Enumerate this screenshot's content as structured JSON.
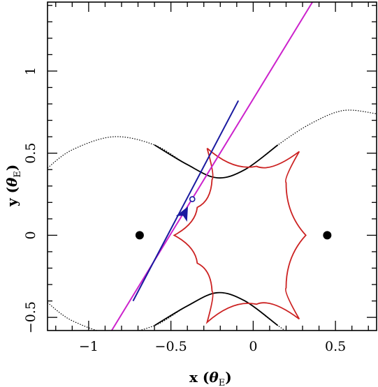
{
  "chart_data": {
    "type": "line",
    "title": "",
    "xlabel": "x (θ_E)",
    "ylabel": "y (θ_E)",
    "xlabel_main": "x",
    "ylabel_main": "y",
    "label_theta": "θ",
    "label_sub": "E",
    "xlim": [
      -1.25,
      0.75
    ],
    "ylim": [
      -0.58,
      1.42
    ],
    "x_ticks": [
      -1,
      -0.5,
      0,
      0.5
    ],
    "x_tick_labels": [
      "−1",
      "−0.5",
      "0",
      "0.5"
    ],
    "y_ticks": [
      -0.5,
      0,
      0.5,
      1
    ],
    "y_tick_labels": [
      "−0.5",
      "0",
      "0.5",
      "1"
    ],
    "grid": false,
    "lenses": [
      {
        "x": -0.69,
        "y": 0.0
      },
      {
        "x": 0.45,
        "y": 0.0
      }
    ],
    "trajectory": {
      "color_solid": "#1a1aa0",
      "color_ends": "#cc22cc",
      "solid_from": [
        -0.73,
        -0.4
      ],
      "solid_to": [
        -0.09,
        0.82
      ],
      "full_from": [
        -0.86,
        -0.58
      ],
      "full_to": [
        0.36,
        1.42
      ]
    },
    "source_position": {
      "x": -0.37,
      "y": 0.22
    },
    "arrow": {
      "x": -0.42,
      "y": 0.13,
      "color": "#1a1aa0"
    },
    "caustic": {
      "color": "#cc2222",
      "cusps": [
        [
          -0.28,
          0.53
        ],
        [
          0.28,
          0.51
        ],
        [
          0.32,
          0.0
        ],
        [
          0.28,
          -0.51
        ],
        [
          -0.28,
          -0.53
        ],
        [
          -0.48,
          0.0
        ]
      ],
      "fold_points": [
        [
          -0.25,
          0.34
        ],
        [
          0.02,
          0.42
        ],
        [
          0.2,
          0.32
        ],
        [
          0.2,
          -0.32
        ],
        [
          0.02,
          -0.42
        ],
        [
          -0.25,
          -0.34
        ],
        [
          -0.34,
          -0.17
        ],
        [
          -0.34,
          0.17
        ]
      ]
    },
    "critical_curve": {
      "color": "#000000",
      "upper": [
        [
          -1.25,
          0.41
        ],
        [
          -1.1,
          0.52
        ],
        [
          -0.85,
          0.6
        ],
        [
          -0.6,
          0.55
        ],
        [
          -0.4,
          0.43
        ],
        [
          -0.22,
          0.35
        ],
        [
          -0.05,
          0.4
        ],
        [
          0.15,
          0.55
        ],
        [
          0.35,
          0.68
        ],
        [
          0.55,
          0.76
        ],
        [
          0.75,
          0.74
        ]
      ],
      "lower": [
        [
          -1.25,
          -0.41
        ],
        [
          -1.1,
          -0.52
        ],
        [
          -0.85,
          -0.6
        ],
        [
          -0.6,
          -0.55
        ],
        [
          -0.4,
          -0.43
        ],
        [
          -0.22,
          -0.35
        ],
        [
          -0.05,
          -0.4
        ],
        [
          0.15,
          -0.55
        ],
        [
          0.35,
          -0.68
        ],
        [
          0.55,
          -0.76
        ],
        [
          0.75,
          -0.74
        ]
      ],
      "solid_range": [
        -0.6,
        0.12
      ]
    }
  }
}
